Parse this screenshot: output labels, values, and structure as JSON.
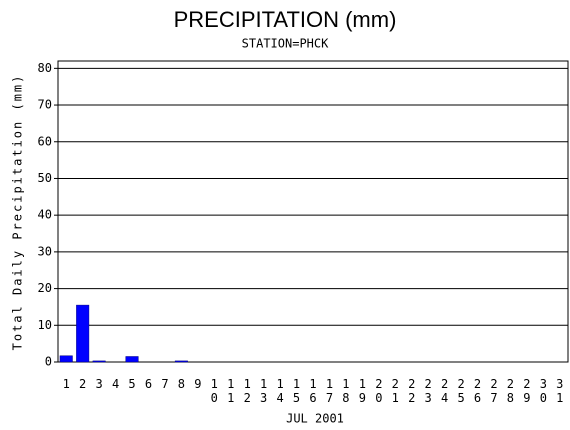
{
  "chart_data": {
    "type": "bar",
    "title": "PRECIPITATION (mm)",
    "subtitle": "STATION=PHCK",
    "x_label": "JUL 2001",
    "y_label": "Total Daily Precipitation (mm)",
    "categories": [
      "1",
      "2",
      "3",
      "4",
      "5",
      "6",
      "7",
      "8",
      "9",
      "10",
      "11",
      "12",
      "13",
      "14",
      "15",
      "16",
      "17",
      "18",
      "19",
      "20",
      "21",
      "22",
      "23",
      "24",
      "25",
      "26",
      "27",
      "28",
      "29",
      "30",
      "31"
    ],
    "values": [
      1.7,
      15.5,
      0.3,
      0,
      1.5,
      0,
      0,
      0.3,
      0,
      0,
      0,
      0,
      0,
      0,
      0,
      0,
      0,
      0,
      0,
      0,
      0,
      0,
      0,
      0,
      0,
      0,
      0,
      0,
      0,
      0,
      0
    ],
    "color": "#0000ff",
    "ylim": [
      0,
      82
    ],
    "yticks": [
      0,
      10,
      20,
      30,
      40,
      50,
      60,
      70,
      80
    ],
    "grid": true
  }
}
